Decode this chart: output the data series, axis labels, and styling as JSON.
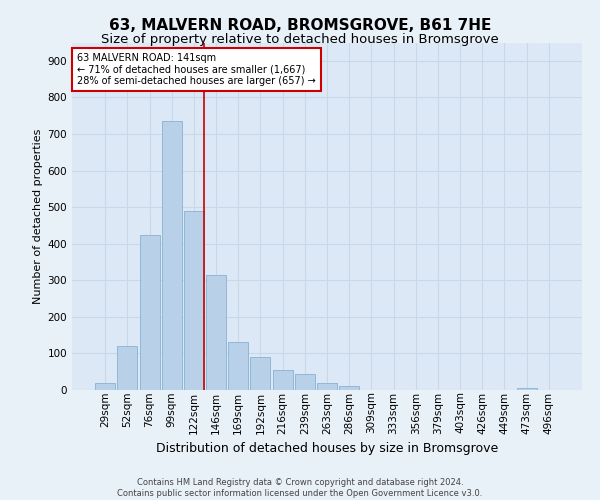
{
  "title": "63, MALVERN ROAD, BROMSGROVE, B61 7HE",
  "subtitle": "Size of property relative to detached houses in Bromsgrove",
  "xlabel": "Distribution of detached houses by size in Bromsgrove",
  "ylabel": "Number of detached properties",
  "categories": [
    "29sqm",
    "52sqm",
    "76sqm",
    "99sqm",
    "122sqm",
    "146sqm",
    "169sqm",
    "192sqm",
    "216sqm",
    "239sqm",
    "263sqm",
    "286sqm",
    "309sqm",
    "333sqm",
    "356sqm",
    "379sqm",
    "403sqm",
    "426sqm",
    "449sqm",
    "473sqm",
    "496sqm"
  ],
  "values": [
    20,
    120,
    425,
    735,
    490,
    315,
    130,
    90,
    55,
    45,
    20,
    10,
    0,
    0,
    0,
    0,
    0,
    0,
    0,
    5,
    0
  ],
  "bar_color": "#b8d0e8",
  "bar_edge_color": "#7aaacf",
  "vline_color": "#cc0000",
  "annotation_text": "63 MALVERN ROAD: 141sqm\n← 71% of detached houses are smaller (1,667)\n28% of semi-detached houses are larger (657) →",
  "annotation_box_color": "#ffffff",
  "annotation_box_edge_color": "#cc0000",
  "background_color": "#e8f0f8",
  "plot_bg_color": "#dce8f5",
  "grid_color": "#c8d8e8",
  "footnote": "Contains HM Land Registry data © Crown copyright and database right 2024.\nContains public sector information licensed under the Open Government Licence v3.0.",
  "ylim": [
    0,
    950
  ],
  "yticks": [
    0,
    100,
    200,
    300,
    400,
    500,
    600,
    700,
    800,
    900
  ],
  "title_fontsize": 11,
  "subtitle_fontsize": 9.5,
  "xlabel_fontsize": 9,
  "ylabel_fontsize": 8,
  "tick_fontsize": 7.5,
  "annotation_fontsize": 7,
  "footnote_fontsize": 6
}
